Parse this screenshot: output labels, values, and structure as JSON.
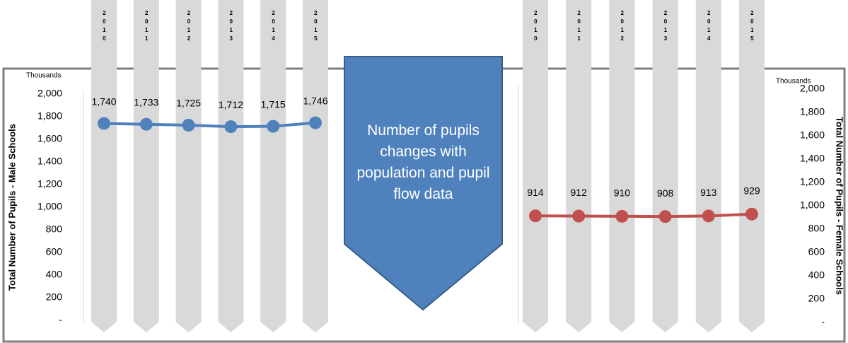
{
  "callout": "Number of pupils changes with population and pupil flow data",
  "chart_data": [
    {
      "type": "line",
      "axis_side": "left",
      "axis_unit": "Thousands",
      "ylabel": "Total Number of Pupils - Male Schools",
      "categories": [
        "2010",
        "2011",
        "2012",
        "2013",
        "2014",
        "2015"
      ],
      "series": [
        {
          "color": "#4f81bd",
          "values": [
            1740,
            1733,
            1725,
            1712,
            1715,
            1746
          ],
          "value_labels": [
            "1,740",
            "1,733",
            "1,725",
            "1,712",
            "1,715",
            "1,746"
          ]
        }
      ],
      "ylim": [
        0,
        2000
      ],
      "yticks": [
        {
          "value": 0,
          "label": "-"
        },
        200,
        400,
        600,
        800,
        {
          "value": 1000,
          "label": "1,000"
        },
        {
          "value": 1200,
          "label": "1,200"
        },
        {
          "value": 1400,
          "label": "1,400"
        },
        {
          "value": 1600,
          "label": "1,600"
        },
        {
          "value": 1800,
          "label": "1,800"
        },
        {
          "value": 2000,
          "label": "2,000"
        }
      ],
      "grid": false
    },
    {
      "type": "line",
      "axis_side": "right",
      "axis_unit": "Thousands",
      "ylabel": "Total Number of Pupils - Female Schools",
      "categories": [
        "2010",
        "2011",
        "2012",
        "2013",
        "2014",
        "2015"
      ],
      "series": [
        {
          "color": "#c0504d",
          "values": [
            914,
            912,
            910,
            908,
            913,
            929
          ]
        }
      ],
      "ylim": [
        0,
        2000
      ],
      "yticks": [
        {
          "value": 0,
          "label": "-"
        },
        200,
        400,
        600,
        800,
        {
          "value": 1000,
          "label": "1,000"
        },
        {
          "value": 1200,
          "label": "1,200"
        },
        {
          "value": 1400,
          "label": "1,400"
        },
        {
          "value": 1600,
          "label": "1,600"
        },
        {
          "value": 1800,
          "label": "1,800"
        },
        {
          "value": 2000,
          "label": "2,000"
        }
      ],
      "grid": false
    }
  ]
}
